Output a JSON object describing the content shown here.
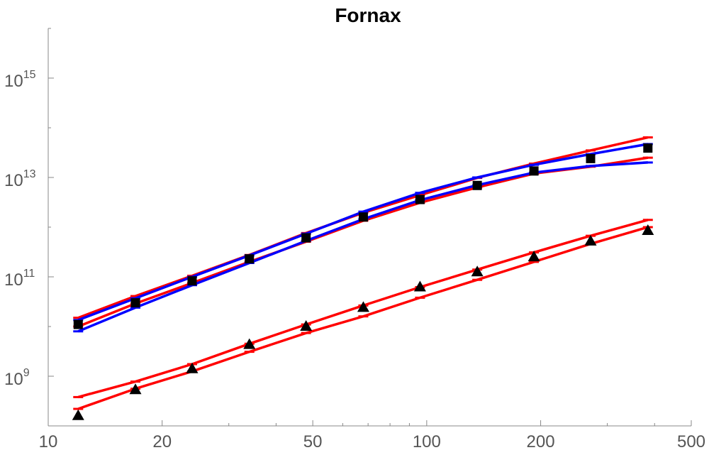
{
  "chart_data": {
    "type": "line",
    "title": "Fornax",
    "xlabel": "",
    "ylabel": "",
    "xscale": "log",
    "yscale": "log",
    "xlim": [
      10,
      500
    ],
    "ylim": [
      100000000.0,
      1e+16
    ],
    "x_ticks": [
      {
        "value": 10,
        "label": "10"
      },
      {
        "value": 20,
        "label": "20"
      },
      {
        "value": 50,
        "label": "50"
      },
      {
        "value": 100,
        "label": "100"
      },
      {
        "value": 200,
        "label": "200"
      },
      {
        "value": 500,
        "label": "500"
      }
    ],
    "y_ticks": [
      {
        "value": 1000000000.0,
        "base": "10",
        "exp": "9"
      },
      {
        "value": 100000000000.0,
        "base": "10",
        "exp": "11"
      },
      {
        "value": 10000000000000.0,
        "base": "10",
        "exp": "13"
      },
      {
        "value": 1000000000000000.0,
        "base": "10",
        "exp": "15"
      }
    ],
    "grid": false,
    "legend": "none",
    "x": [
      12,
      17,
      24,
      34,
      48,
      68,
      96,
      136,
      192,
      271,
      384
    ],
    "series": [
      {
        "color": "#000000",
        "marker": "square",
        "values": [
          11000000000.0,
          30000000000.0,
          83000000000.0,
          230000000000.0,
          610000000000.0,
          1600000000000.0,
          3600000000000.0,
          6900000000000.0,
          13500000000000.0,
          24000000000000.0,
          39000000000000.0
        ]
      },
      {
        "color": "#000000",
        "marker": "triangle",
        "values": [
          160000000.0,
          530000000.0,
          1400000000.0,
          4300000000.0,
          10000000000.0,
          24000000000.0,
          62000000000.0,
          125000000000.0,
          250000000000.0,
          520000000000.0,
          850000000000.0
        ]
      },
      {
        "color": "#ff0000",
        "marker": "none",
        "values": [
          15000000000.0,
          41000000000.0,
          105000000000.0,
          275000000000.0,
          760000000000.0,
          1950000000000.0,
          4400000000000.0,
          9800000000000.0,
          19000000000000.0,
          35000000000000.0,
          64000000000000.0
        ]
      },
      {
        "color": "#ff0000",
        "marker": "none",
        "values": [
          10000000000.0,
          29000000000.0,
          75000000000.0,
          200000000000.0,
          510000000000.0,
          1350000000000.0,
          3100000000000.0,
          6300000000000.0,
          12000000000000.0,
          16500000000000.0,
          25000000000000.0
        ]
      },
      {
        "color": "#0000ff",
        "marker": "none",
        "values": [
          13500000000.0,
          37000000000.0,
          100000000000.0,
          270000000000.0,
          740000000000.0,
          2050000000000.0,
          4900000000000.0,
          10000000000000.0,
          18000000000000.0,
          29500000000000.0,
          47000000000000.0
        ]
      },
      {
        "color": "#0000ff",
        "marker": "none",
        "values": [
          8000000000.0,
          24000000000.0,
          68000000000.0,
          190000000000.0,
          530000000000.0,
          1450000000000.0,
          3500000000000.0,
          7000000000000.0,
          12500000000000.0,
          17000000000000.0,
          20000000000000.0
        ]
      },
      {
        "color": "#ff0000",
        "marker": "none",
        "values": [
          380000000.0,
          780000000.0,
          1750000000.0,
          4500000000.0,
          11000000000.0,
          26500000000.0,
          62000000000.0,
          140000000000.0,
          310000000000.0,
          670000000000.0,
          1400000000000.0
        ]
      },
      {
        "color": "#ff0000",
        "marker": "none",
        "values": [
          220000000.0,
          560000000.0,
          1250000000.0,
          3100000000.0,
          7400000000.0,
          16000000000.0,
          38000000000.0,
          87000000000.0,
          200000000000.0,
          460000000000.0,
          1000000000000.0
        ]
      }
    ]
  }
}
